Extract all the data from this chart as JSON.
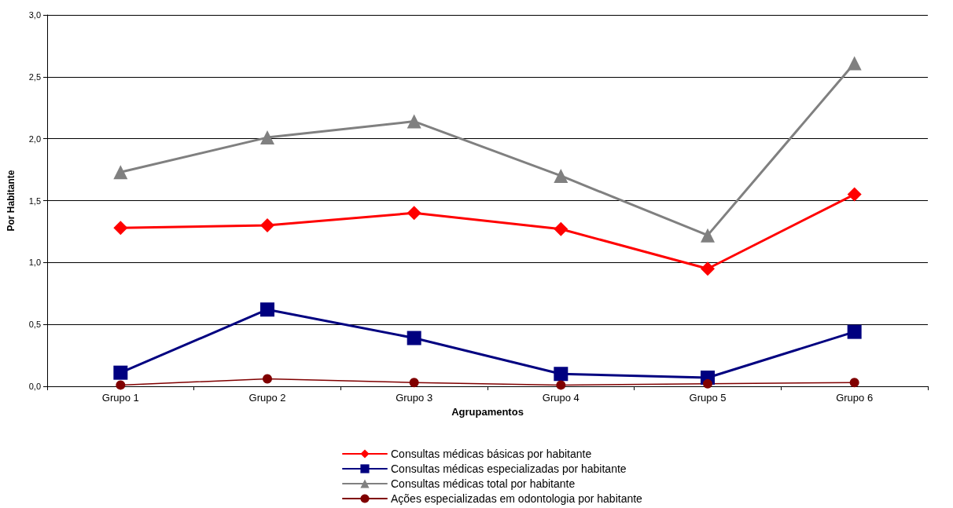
{
  "chart_data": {
    "type": "line",
    "xlabel": "Agrupamentos",
    "ylabel": "Por Habitante",
    "categories": [
      "Grupo 1",
      "Grupo 2",
      "Grupo 3",
      "Grupo 4",
      "Grupo 5",
      "Grupo 6"
    ],
    "series": [
      {
        "name": "Consultas médicas básicas por habitante",
        "color": "#ff0000",
        "marker": "diamond",
        "values": [
          1.28,
          1.3,
          1.4,
          1.27,
          0.95,
          1.55
        ]
      },
      {
        "name": "Consultas médicas especializadas por habitante",
        "color": "#000080",
        "marker": "square",
        "values": [
          0.11,
          0.62,
          0.39,
          0.1,
          0.07,
          0.44
        ]
      },
      {
        "name": "Consultas médicas total por habitante",
        "color": "#808080",
        "marker": "triangle",
        "values": [
          1.73,
          2.01,
          2.14,
          1.7,
          1.22,
          2.61
        ]
      },
      {
        "name": "Ações especializadas em odontologia por habitante",
        "color": "#800000",
        "marker": "circle",
        "values": [
          0.01,
          0.06,
          0.03,
          0.01,
          0.02,
          0.03
        ]
      }
    ],
    "ylim": [
      0,
      3
    ],
    "yticks": [
      {
        "value": 0,
        "label": "0,0"
      },
      {
        "value": 0.5,
        "label": "0,5"
      },
      {
        "value": 1,
        "label": "1,0"
      },
      {
        "value": 1.5,
        "label": "1,5"
      },
      {
        "value": 2,
        "label": "2,0"
      },
      {
        "value": 2.5,
        "label": "2,5"
      },
      {
        "value": 3,
        "label": "3,0"
      }
    ],
    "grid": "y",
    "legend": "bottom"
  }
}
